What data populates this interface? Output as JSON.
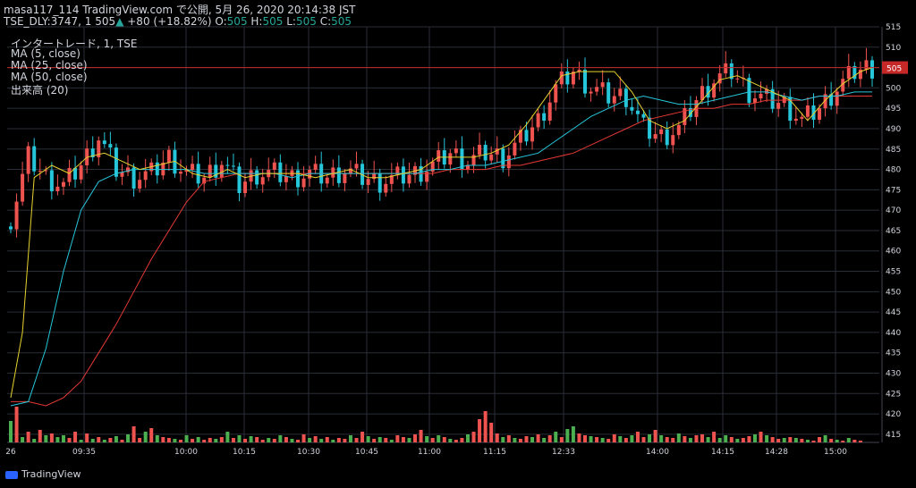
{
  "header": {
    "line1": "masa117_114 TradingView.com で公開, 5月 26, 2020 20:14:38 JST",
    "symbol": "TSE_DLY:3747, 1",
    "last": "505",
    "change": "+80 (+18.82%)",
    "o_label": "O:",
    "o": "505",
    "h_label": "H:",
    "h": "505",
    "l_label": "L:",
    "l": "505",
    "c_label": "C:",
    "c": "505"
  },
  "legend": {
    "title": "インタートレード, 1, TSE",
    "ma5": "MA (5, close)",
    "ma25": "MA (25, close)",
    "ma50": "MA (50, close)",
    "volume": "出来高 (20)"
  },
  "branding": {
    "logo_text": "TradingView"
  },
  "colors": {
    "up": "#ef5350",
    "down": "#26c6da",
    "vol_up": "#ef5350",
    "vol_down": "#4caf50",
    "ma5": "#e6d22e",
    "ma25": "#26c6da",
    "ma50": "#e53935",
    "grid": "#2a2e39",
    "text": "#d1d4dc",
    "price_line": "#c62828"
  },
  "chart_data": {
    "type": "candlestick",
    "title": "インタートレード, 1, TSE",
    "ylim": [
      413,
      515
    ],
    "y_ticks": [
      415,
      420,
      425,
      430,
      435,
      440,
      445,
      450,
      455,
      460,
      465,
      470,
      475,
      480,
      485,
      490,
      495,
      500,
      505,
      510,
      515
    ],
    "x_tick_labels": [
      "26",
      "09:35",
      "10:00",
      "10:15",
      "10:30",
      "10:45",
      "11:00",
      "11:15",
      "12:33",
      "14:00",
      "14:15",
      "14:28",
      "15:00"
    ],
    "last_price": 505,
    "close_path": [
      [
        0,
        468
      ],
      [
        3,
        483
      ],
      [
        6,
        478
      ],
      [
        9,
        476
      ],
      [
        12,
        481
      ],
      [
        15,
        488
      ],
      [
        18,
        480
      ],
      [
        21,
        478
      ],
      [
        24,
        479
      ],
      [
        27,
        483
      ],
      [
        30,
        479
      ],
      [
        33,
        478
      ],
      [
        36,
        482
      ],
      [
        39,
        476
      ],
      [
        42,
        479
      ],
      [
        45,
        479
      ],
      [
        48,
        478
      ],
      [
        51,
        479
      ],
      [
        54,
        478
      ],
      [
        57,
        480
      ],
      [
        60,
        478
      ],
      [
        63,
        477
      ],
      [
        66,
        478
      ],
      [
        69,
        479
      ],
      [
        72,
        481
      ],
      [
        75,
        484
      ],
      [
        78,
        482
      ],
      [
        81,
        484
      ],
      [
        84,
        483
      ],
      [
        87,
        487
      ],
      [
        90,
        492
      ],
      [
        93,
        500
      ],
      [
        96,
        504
      ],
      [
        99,
        500
      ],
      [
        102,
        498
      ],
      [
        105,
        498
      ],
      [
        108,
        490
      ],
      [
        111,
        488
      ],
      [
        114,
        490
      ],
      [
        117,
        497
      ],
      [
        120,
        502
      ],
      [
        123,
        504
      ],
      [
        126,
        499
      ],
      [
        129,
        497
      ],
      [
        132,
        496
      ],
      [
        135,
        492
      ],
      [
        138,
        495
      ],
      [
        141,
        500
      ],
      [
        144,
        504
      ],
      [
        146,
        505
      ]
    ],
    "ma5_path": [
      [
        0,
        424
      ],
      [
        2,
        440
      ],
      [
        4,
        478
      ],
      [
        7,
        481
      ],
      [
        10,
        479
      ],
      [
        13,
        483
      ],
      [
        16,
        484
      ],
      [
        19,
        482
      ],
      [
        22,
        480
      ],
      [
        25,
        481
      ],
      [
        28,
        482
      ],
      [
        31,
        479
      ],
      [
        34,
        478
      ],
      [
        37,
        480
      ],
      [
        40,
        478
      ],
      [
        43,
        479
      ],
      [
        46,
        479
      ],
      [
        49,
        479
      ],
      [
        52,
        478
      ],
      [
        55,
        479
      ],
      [
        58,
        480
      ],
      [
        61,
        478
      ],
      [
        64,
        478
      ],
      [
        67,
        479
      ],
      [
        70,
        480
      ],
      [
        73,
        483
      ],
      [
        76,
        483
      ],
      [
        79,
        483
      ],
      [
        82,
        484
      ],
      [
        85,
        486
      ],
      [
        88,
        491
      ],
      [
        91,
        497
      ],
      [
        94,
        503
      ],
      [
        97,
        504
      ],
      [
        100,
        504
      ],
      [
        103,
        504
      ],
      [
        106,
        499
      ],
      [
        109,
        492
      ],
      [
        112,
        490
      ],
      [
        115,
        492
      ],
      [
        118,
        497
      ],
      [
        121,
        502
      ],
      [
        124,
        503
      ],
      [
        127,
        501
      ],
      [
        130,
        499
      ],
      [
        133,
        497
      ],
      [
        136,
        492
      ],
      [
        139,
        497
      ],
      [
        142,
        501
      ],
      [
        145,
        504
      ],
      [
        147,
        505
      ]
    ],
    "ma25_path": [
      [
        0,
        422
      ],
      [
        3,
        423
      ],
      [
        6,
        436
      ],
      [
        9,
        455
      ],
      [
        12,
        470
      ],
      [
        15,
        477
      ],
      [
        18,
        479
      ],
      [
        21,
        480
      ],
      [
        24,
        480
      ],
      [
        27,
        480
      ],
      [
        30,
        480
      ],
      [
        33,
        479
      ],
      [
        36,
        479
      ],
      [
        39,
        479
      ],
      [
        42,
        479
      ],
      [
        45,
        479
      ],
      [
        48,
        478
      ],
      [
        51,
        479
      ],
      [
        54,
        479
      ],
      [
        57,
        479
      ],
      [
        60,
        479
      ],
      [
        63,
        479
      ],
      [
        66,
        479
      ],
      [
        69,
        479
      ],
      [
        72,
        480
      ],
      [
        75,
        480
      ],
      [
        78,
        481
      ],
      [
        81,
        481
      ],
      [
        84,
        482
      ],
      [
        87,
        483
      ],
      [
        90,
        484
      ],
      [
        93,
        487
      ],
      [
        96,
        490
      ],
      [
        99,
        493
      ],
      [
        102,
        495
      ],
      [
        105,
        497
      ],
      [
        108,
        498
      ],
      [
        111,
        497
      ],
      [
        114,
        496
      ],
      [
        117,
        496
      ],
      [
        120,
        497
      ],
      [
        123,
        498
      ],
      [
        126,
        499
      ],
      [
        129,
        499
      ],
      [
        132,
        498
      ],
      [
        135,
        497
      ],
      [
        138,
        498
      ],
      [
        141,
        498
      ],
      [
        144,
        499
      ],
      [
        147,
        499
      ]
    ],
    "ma50_path": [
      [
        0,
        423
      ],
      [
        3,
        423
      ],
      [
        6,
        422
      ],
      [
        9,
        424
      ],
      [
        12,
        428
      ],
      [
        15,
        435
      ],
      [
        18,
        442
      ],
      [
        21,
        450
      ],
      [
        24,
        458
      ],
      [
        27,
        465
      ],
      [
        30,
        472
      ],
      [
        33,
        477
      ],
      [
        36,
        478
      ],
      [
        39,
        479
      ],
      [
        42,
        479
      ],
      [
        45,
        479
      ],
      [
        48,
        479
      ],
      [
        51,
        479
      ],
      [
        54,
        479
      ],
      [
        57,
        479
      ],
      [
        60,
        479
      ],
      [
        63,
        479
      ],
      [
        66,
        479
      ],
      [
        69,
        479
      ],
      [
        72,
        479
      ],
      [
        75,
        480
      ],
      [
        78,
        480
      ],
      [
        81,
        480
      ],
      [
        84,
        481
      ],
      [
        87,
        481
      ],
      [
        90,
        482
      ],
      [
        93,
        483
      ],
      [
        96,
        484
      ],
      [
        99,
        486
      ],
      [
        102,
        488
      ],
      [
        105,
        490
      ],
      [
        108,
        492
      ],
      [
        111,
        493
      ],
      [
        114,
        494
      ],
      [
        117,
        495
      ],
      [
        120,
        495
      ],
      [
        123,
        496
      ],
      [
        126,
        496
      ],
      [
        129,
        497
      ],
      [
        132,
        497
      ],
      [
        135,
        497
      ],
      [
        138,
        498
      ],
      [
        141,
        498
      ],
      [
        144,
        498
      ],
      [
        147,
        498
      ]
    ],
    "volume_heights": [
      24,
      40,
      6,
      12,
      4,
      14,
      8,
      10,
      6,
      8,
      5,
      12,
      3,
      10,
      4,
      6,
      3,
      5,
      7,
      3,
      9,
      18,
      5,
      12,
      16,
      8,
      6,
      5,
      4,
      3,
      8,
      4,
      6,
      3,
      5,
      4,
      6,
      12,
      5,
      8,
      4,
      7,
      6,
      3,
      5,
      4,
      8,
      6,
      4,
      3,
      9,
      5,
      7,
      4,
      6,
      3,
      5,
      4,
      8,
      5,
      12,
      7,
      4,
      6,
      5,
      3,
      8,
      6,
      5,
      9,
      14,
      7,
      5,
      8,
      6,
      4,
      3,
      5,
      9,
      12,
      26,
      35,
      22,
      10,
      6,
      8,
      5,
      4,
      7,
      6,
      9,
      5,
      8,
      12,
      6,
      15,
      18,
      10,
      8,
      7,
      6,
      5,
      4,
      9,
      7,
      5,
      8,
      12,
      6,
      9,
      14,
      8,
      6,
      5,
      10,
      7,
      5,
      8,
      9,
      6,
      12,
      5,
      8,
      6,
      4,
      5,
      7,
      9,
      12,
      8,
      6,
      4,
      5,
      6,
      5,
      4,
      3,
      2,
      6,
      8,
      4,
      3,
      2,
      5,
      3,
      2
    ],
    "volume_up_flags": [
      0,
      1,
      0,
      1,
      0,
      1,
      0,
      1,
      0,
      0,
      1,
      1,
      0,
      1,
      0,
      1,
      0,
      1,
      0,
      1,
      0,
      1,
      1,
      0,
      1,
      0,
      1,
      1,
      0,
      1,
      0,
      1,
      0,
      1,
      1,
      0,
      1,
      0,
      1,
      0,
      1,
      0,
      1,
      1,
      0,
      1,
      0,
      1,
      0,
      1,
      1,
      0,
      1,
      0,
      1,
      0,
      1,
      1,
      0,
      1,
      1,
      0,
      1,
      0,
      1,
      0,
      1,
      1,
      0,
      1,
      1,
      0,
      1,
      0,
      1,
      0,
      1,
      1,
      0,
      1,
      1,
      1,
      1,
      1,
      0,
      1,
      0,
      1,
      1,
      0,
      1,
      0,
      1,
      0,
      1,
      0,
      0,
      1,
      1,
      0,
      1,
      0,
      1,
      1,
      0,
      1,
      0,
      1,
      1,
      0,
      1,
      0,
      1,
      1,
      0,
      1,
      0,
      1,
      1,
      0,
      1,
      0,
      0,
      1,
      0,
      1,
      1,
      0,
      1,
      0,
      1,
      1,
      0,
      1,
      0,
      1,
      0,
      1,
      1,
      0,
      1,
      0,
      1,
      0,
      1,
      1
    ]
  }
}
